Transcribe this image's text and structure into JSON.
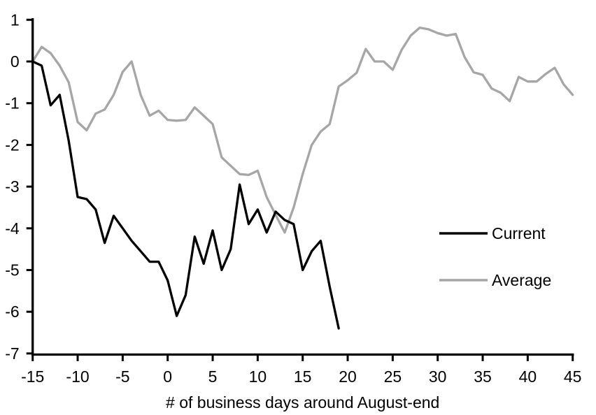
{
  "figure": {
    "background": "#ffffff",
    "axis_color": "#000000"
  },
  "chart_data": {
    "type": "line",
    "title": "",
    "xlabel": "# of business days around August-end",
    "ylabel": "",
    "xlim": [
      -15,
      45
    ],
    "ylim": [
      -7,
      1
    ],
    "x_ticks": [
      -15,
      -10,
      -5,
      0,
      5,
      10,
      15,
      20,
      25,
      30,
      35,
      40,
      45
    ],
    "y_ticks": [
      1,
      0,
      -1,
      -2,
      -3,
      -4,
      -5,
      -6,
      -7
    ],
    "grid": false,
    "legend_position": "right-middle",
    "series": [
      {
        "name": "Current",
        "color": "#000000",
        "x_start": -15,
        "x_step": 1,
        "values": [
          0,
          -0.1,
          -1.05,
          -0.8,
          -1.9,
          -3.25,
          -3.3,
          -3.55,
          -4.35,
          -3.7,
          -4.0,
          -4.3,
          -4.55,
          -4.8,
          -4.8,
          -5.25,
          -6.1,
          -5.6,
          -4.2,
          -4.85,
          -4.05,
          -5.0,
          -4.5,
          -2.95,
          -3.9,
          -3.55,
          -4.1,
          -3.6,
          -3.8,
          -3.9,
          -5.0,
          -4.55,
          -4.3,
          -5.4,
          -6.4
        ]
      },
      {
        "name": "Average",
        "color": "#A6A6A6",
        "x_start": -15,
        "x_step": 1,
        "values": [
          0,
          0.35,
          0.2,
          -0.1,
          -0.5,
          -1.45,
          -1.65,
          -1.25,
          -1.15,
          -0.8,
          -0.25,
          0,
          -0.8,
          -1.3,
          -1.18,
          -1.4,
          -1.42,
          -1.4,
          -1.1,
          -1.3,
          -1.5,
          -2.3,
          -2.5,
          -2.7,
          -2.72,
          -2.62,
          -3.25,
          -3.68,
          -4.1,
          -3.5,
          -2.7,
          -2.0,
          -1.68,
          -1.5,
          -0.6,
          -0.45,
          -0.27,
          0.3,
          0,
          0,
          -0.2,
          0.28,
          0.62,
          0.81,
          0.77,
          0.68,
          0.62,
          0.66,
          0.1,
          -0.26,
          -0.32,
          -0.65,
          -0.75,
          -0.95,
          -0.37,
          -0.48,
          -0.48,
          -0.3,
          -0.15,
          -0.55,
          -0.8
        ]
      }
    ]
  }
}
